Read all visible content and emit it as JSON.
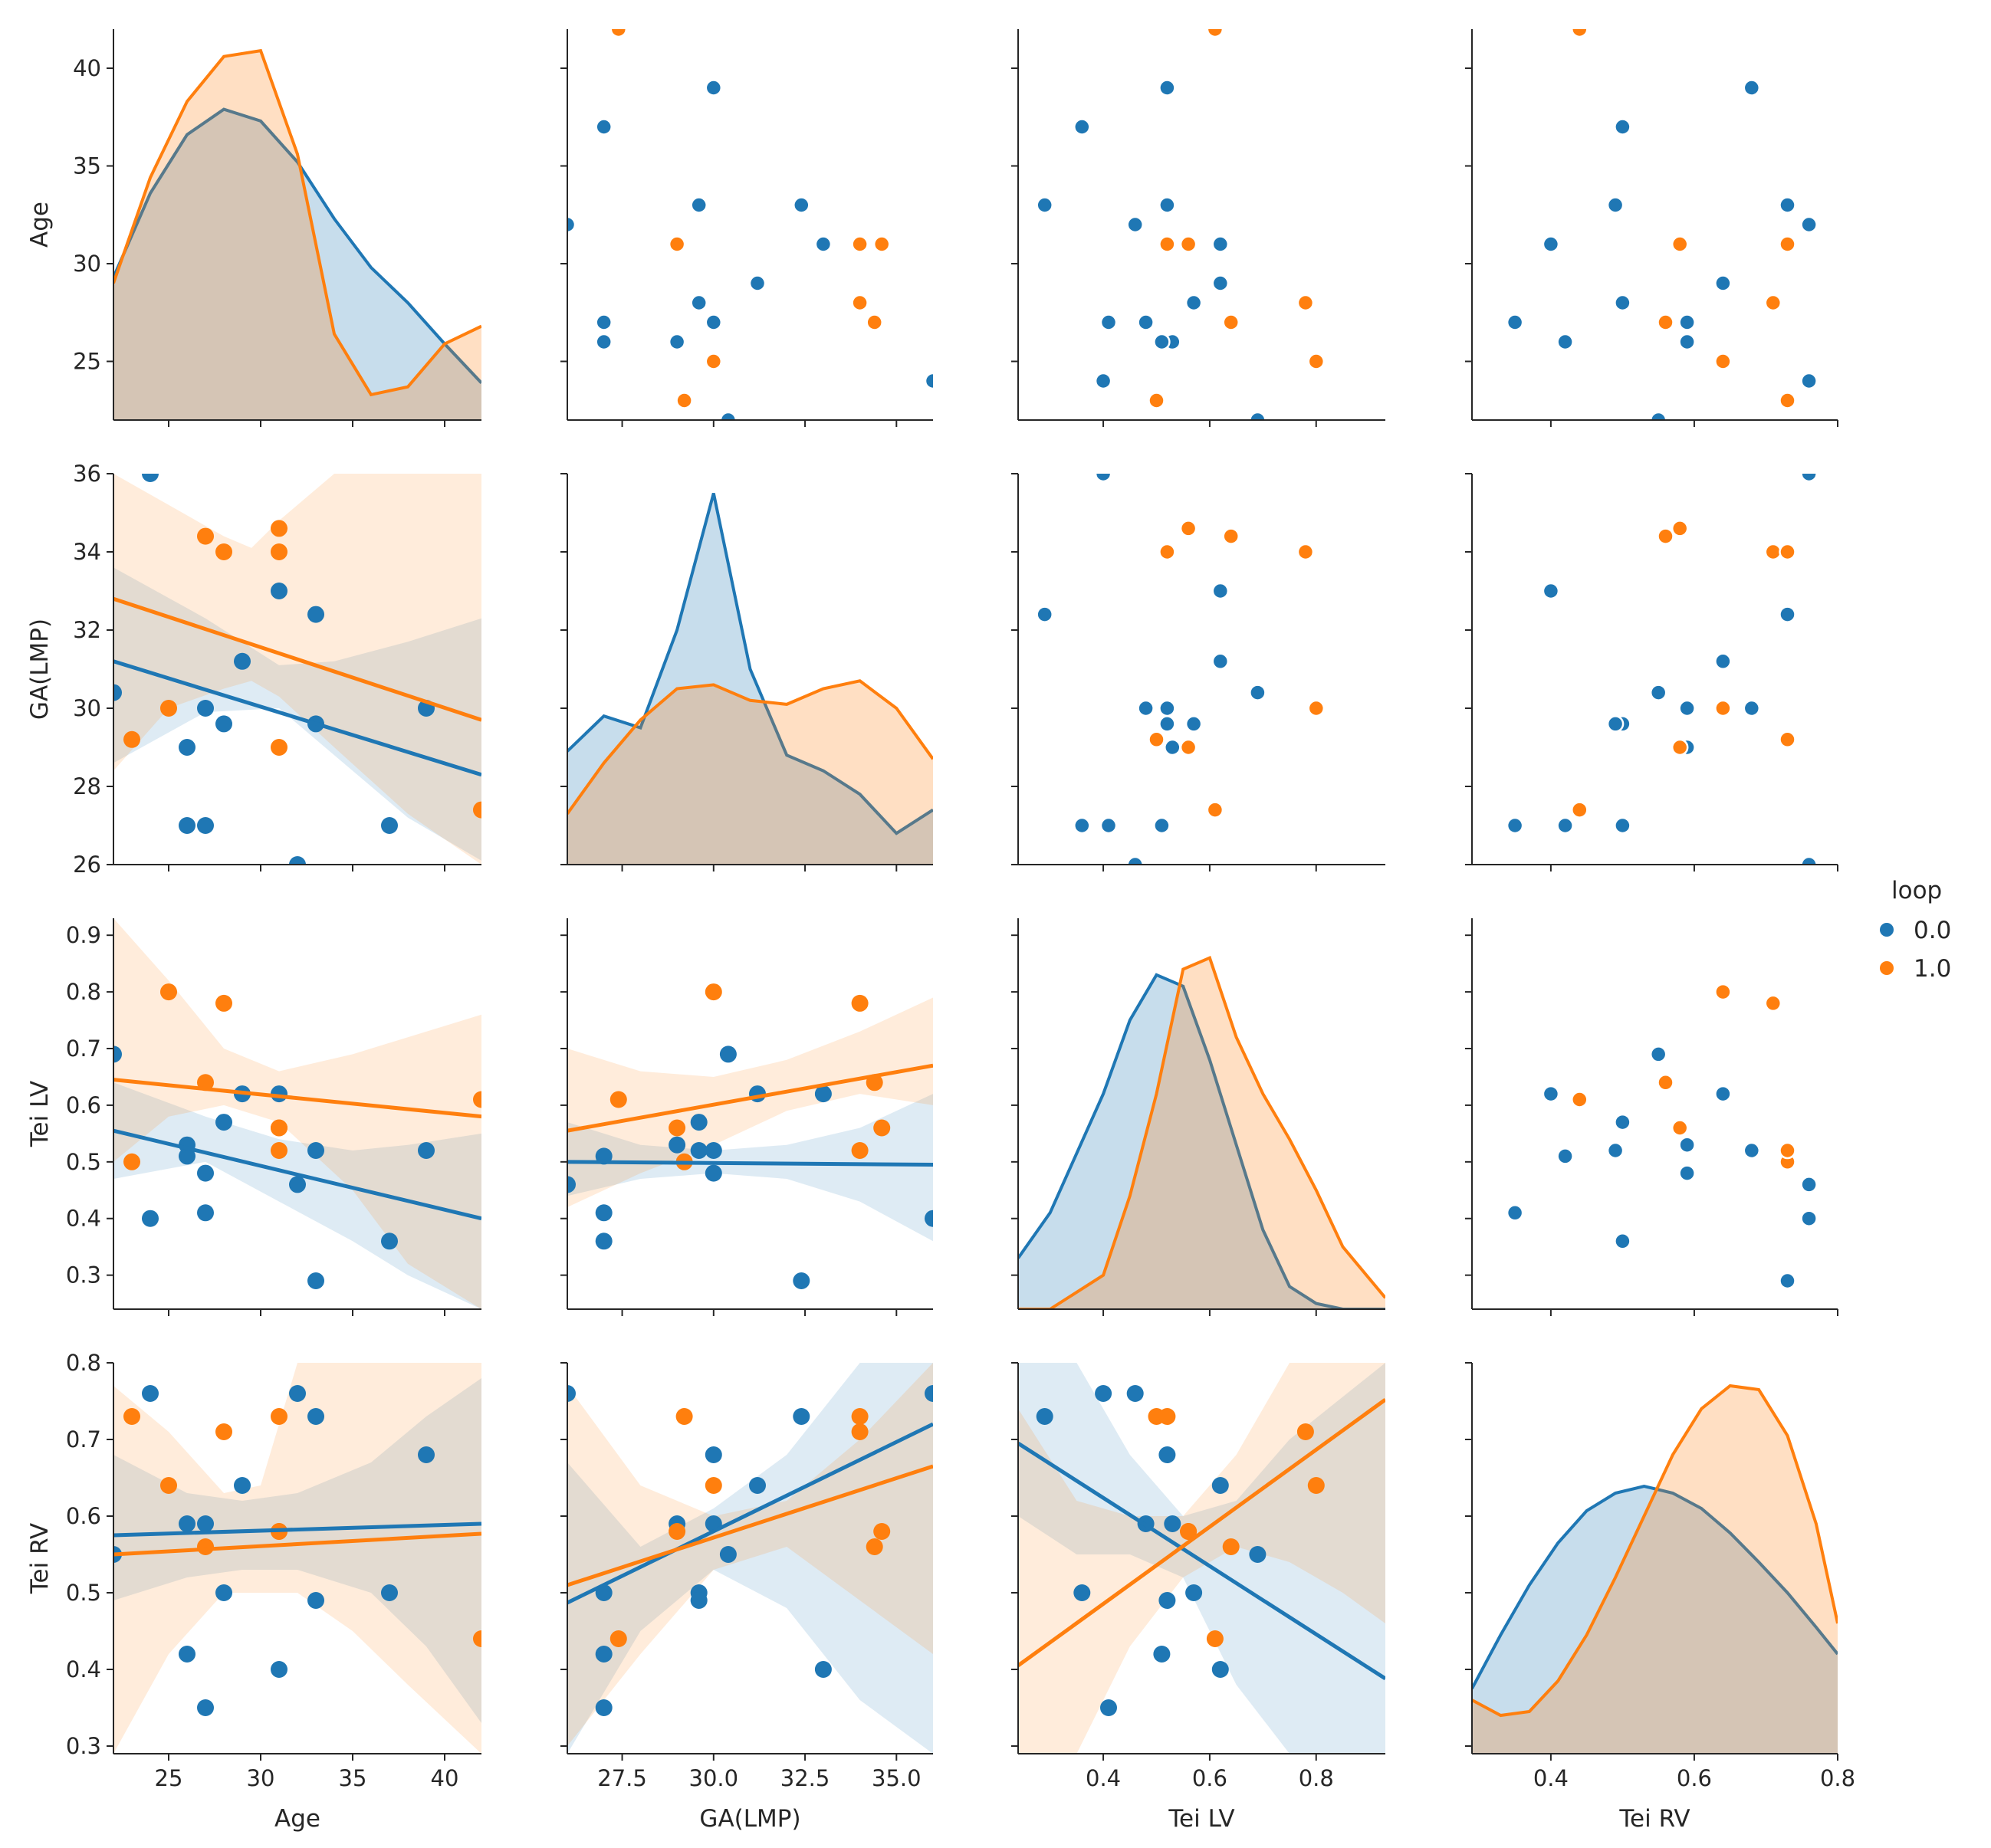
{
  "chart_data": {
    "type": "scatter",
    "kind": "pairplot",
    "variables": [
      "Age",
      "GA(LMP)",
      "Tei LV",
      "Tei RV"
    ],
    "axes": {
      "Age": {
        "lim": [
          22,
          42
        ],
        "ticks": [
          25,
          30,
          35,
          40
        ],
        "tick_labels": [
          "25",
          "30",
          "35",
          "40"
        ]
      },
      "GA(LMP)": {
        "lim": [
          26,
          36
        ],
        "ticks_x": [
          27.5,
          30.0,
          32.5,
          35.0
        ],
        "tick_labels_x": [
          "27.5",
          "30.0",
          "32.5",
          "35.0"
        ],
        "ticks_y": [
          26,
          28,
          30,
          32,
          34,
          36
        ],
        "tick_labels_y": [
          "26",
          "28",
          "30",
          "32",
          "34",
          "36"
        ]
      },
      "Tei LV": {
        "lim": [
          0.24,
          0.93
        ],
        "ticks_x": [
          0.4,
          0.6,
          0.8
        ],
        "tick_labels_x": [
          "0.4",
          "0.6",
          "0.8"
        ],
        "ticks_y": [
          0.3,
          0.4,
          0.5,
          0.6,
          0.7,
          0.8,
          0.9
        ],
        "tick_labels_y": [
          "0.3",
          "0.4",
          "0.5",
          "0.6",
          "0.7",
          "0.8",
          "0.9"
        ]
      },
      "Tei RV": {
        "lim": [
          0.29,
          0.8
        ],
        "ticks_x": [
          0.4,
          0.6,
          0.8
        ],
        "tick_labels_x": [
          "0.4",
          "0.6",
          "0.8"
        ],
        "ticks_y": [
          0.3,
          0.4,
          0.5,
          0.6,
          0.7,
          0.8
        ],
        "tick_labels_y": [
          "0.3",
          "0.4",
          "0.5",
          "0.6",
          "0.7",
          "0.8"
        ]
      }
    },
    "legend": {
      "title": "loop",
      "position": "right",
      "entries": [
        {
          "label": "0.0",
          "color": "#1f77b4"
        },
        {
          "label": "1.0",
          "color": "#ff7f0e"
        }
      ]
    },
    "series": [
      {
        "name": "0.0",
        "color": "#1f77b4",
        "points": [
          [
            22,
            30.4,
            0.69,
            0.55
          ],
          [
            24,
            36,
            0.4,
            0.76
          ],
          [
            26,
            29,
            0.53,
            0.59
          ],
          [
            26,
            27,
            0.51,
            0.42
          ],
          [
            27,
            30,
            0.48,
            0.59
          ],
          [
            27,
            27,
            0.41,
            0.35
          ],
          [
            28,
            29.6,
            0.57,
            0.5
          ],
          [
            29,
            31.2,
            0.62,
            0.64
          ],
          [
            31,
            33,
            0.62,
            0.4
          ],
          [
            32,
            26,
            0.46,
            0.76
          ],
          [
            33,
            29.6,
            0.52,
            0.49
          ],
          [
            33,
            32.4,
            0.29,
            0.73
          ],
          [
            37,
            27,
            0.36,
            0.5
          ],
          [
            39,
            30,
            0.52,
            0.68
          ]
        ]
      },
      {
        "name": "1.0",
        "color": "#ff7f0e",
        "points": [
          [
            23,
            29.2,
            0.5,
            0.73
          ],
          [
            25,
            30,
            0.8,
            0.64
          ],
          [
            27,
            34.4,
            0.64,
            0.56
          ],
          [
            28,
            34,
            0.78,
            0.71
          ],
          [
            31,
            34.6,
            0.56,
            0.58
          ],
          [
            31,
            34,
            0.52,
            0.73
          ],
          [
            31,
            29,
            0.56,
            0.58
          ],
          [
            42,
            27.4,
            0.61,
            0.44
          ]
        ]
      }
    ],
    "kde": {
      "Age": {
        "x": [
          22,
          24,
          26,
          28,
          30,
          32,
          34,
          36,
          38,
          40,
          42
        ],
        "0.0": [
          29.3,
          33.6,
          36.6,
          37.9,
          37.3,
          35.2,
          32.3,
          29.8,
          28.0,
          25.9,
          23.9
        ],
        "1.0": [
          29.0,
          34.4,
          38.3,
          40.6,
          40.9,
          35.6,
          26.4,
          23.3,
          23.7,
          25.9,
          26.8
        ]
      },
      "GA(LMP)": {
        "x": [
          26,
          27,
          28,
          29,
          30,
          31,
          32,
          33,
          34,
          35,
          36
        ],
        "0.0": [
          28.9,
          29.8,
          29.5,
          32.0,
          35.5,
          31.0,
          28.8,
          28.4,
          27.8,
          26.8,
          27.4
        ],
        "1.0": [
          27.3,
          28.6,
          29.7,
          30.5,
          30.6,
          30.2,
          30.1,
          30.5,
          30.7,
          30.0,
          28.7
        ]
      },
      "Tei LV": {
        "x": [
          0.24,
          0.3,
          0.4,
          0.45,
          0.5,
          0.55,
          0.6,
          0.65,
          0.7,
          0.75,
          0.8,
          0.85,
          0.93
        ],
        "0.0": [
          0.33,
          0.41,
          0.62,
          0.75,
          0.83,
          0.81,
          0.68,
          0.53,
          0.38,
          0.28,
          0.25,
          0.24,
          0.24
        ],
        "1.0": [
          0.24,
          0.24,
          0.3,
          0.44,
          0.62,
          0.84,
          0.86,
          0.72,
          0.62,
          0.54,
          0.45,
          0.35,
          0.26
        ]
      },
      "Tei RV": {
        "x": [
          0.29,
          0.33,
          0.37,
          0.41,
          0.45,
          0.49,
          0.53,
          0.57,
          0.61,
          0.65,
          0.69,
          0.73,
          0.77,
          0.8
        ],
        "0.0": [
          0.375,
          0.445,
          0.51,
          0.565,
          0.607,
          0.63,
          0.639,
          0.63,
          0.61,
          0.578,
          0.54,
          0.5,
          0.455,
          0.42
        ],
        "1.0": [
          0.36,
          0.34,
          0.345,
          0.385,
          0.445,
          0.52,
          0.6,
          0.68,
          0.74,
          0.77,
          0.765,
          0.705,
          0.59,
          0.46
        ]
      }
    },
    "regression": {
      "GA(LMP)~Age": {
        "0.0": [
          [
            22,
            31.2
          ],
          [
            42,
            28.3
          ]
        ],
        "1.0": [
          [
            22,
            32.8
          ],
          [
            42,
            29.7
          ]
        ]
      },
      "Tei LV~Age": {
        "0.0": [
          [
            22,
            0.555
          ],
          [
            42,
            0.4
          ]
        ],
        "1.0": [
          [
            22,
            0.645
          ],
          [
            42,
            0.58
          ]
        ]
      },
      "Tei LV~GA(LMP)": {
        "0.0": [
          [
            26,
            0.5
          ],
          [
            36,
            0.495
          ]
        ],
        "1.0": [
          [
            26,
            0.555
          ],
          [
            36,
            0.67
          ]
        ]
      },
      "Tei RV~Age": {
        "0.0": [
          [
            22,
            0.575
          ],
          [
            42,
            0.59
          ]
        ],
        "1.0": [
          [
            22,
            0.55
          ],
          [
            42,
            0.577
          ]
        ]
      },
      "Tei RV~GA(LMP)": {
        "0.0": [
          [
            26,
            0.487
          ],
          [
            36,
            0.72
          ]
        ],
        "1.0": [
          [
            26,
            0.51
          ],
          [
            36,
            0.665
          ]
        ]
      },
      "Tei RV~Tei LV": {
        "0.0": [
          [
            0.24,
            0.695
          ],
          [
            0.93,
            0.388
          ]
        ],
        "1.0": [
          [
            0.24,
            0.405
          ],
          [
            0.93,
            0.752
          ]
        ]
      }
    },
    "confidence_bands": {
      "GA(LMP)~Age": {
        "0.0": {
          "x": [
            22,
            27,
            31,
            34,
            38,
            42
          ],
          "lo": [
            28.6,
            29.9,
            30.0,
            28.8,
            27.2,
            26.1
          ],
          "hi": [
            33.6,
            32.3,
            31.1,
            31.2,
            31.7,
            32.3
          ]
        },
        "1.0": {
          "x": [
            22,
            25,
            28,
            29.5,
            31,
            34,
            38,
            42
          ],
          "lo": [
            28.4,
            30.0,
            30.5,
            30.7,
            30.3,
            29.0,
            27.3,
            26.0
          ],
          "hi": [
            36,
            35.2,
            34.4,
            34.1,
            34.8,
            36,
            36,
            36
          ]
        }
      },
      "Tei LV~Age": {
        "0.0": {
          "x": [
            22,
            27,
            31,
            35,
            38,
            42
          ],
          "lo": [
            0.47,
            0.5,
            0.43,
            0.36,
            0.3,
            0.24
          ],
          "hi": [
            0.64,
            0.58,
            0.54,
            0.52,
            0.53,
            0.55
          ]
        },
        "1.0": {
          "x": [
            22,
            25,
            28,
            31,
            35,
            38,
            42
          ],
          "lo": [
            0.5,
            0.58,
            0.6,
            0.57,
            0.45,
            0.32,
            0.24
          ],
          "hi": [
            0.93,
            0.82,
            0.7,
            0.66,
            0.69,
            0.72,
            0.76
          ]
        }
      },
      "Tei LV~GA(LMP)": {
        "0.0": {
          "x": [
            26,
            28,
            30,
            32,
            34,
            36
          ],
          "lo": [
            0.44,
            0.47,
            0.48,
            0.47,
            0.43,
            0.36
          ],
          "hi": [
            0.57,
            0.53,
            0.52,
            0.53,
            0.56,
            0.62
          ]
        },
        "1.0": {
          "x": [
            26,
            28,
            30,
            32,
            34,
            36
          ],
          "lo": [
            0.42,
            0.48,
            0.53,
            0.59,
            0.62,
            0.6
          ],
          "hi": [
            0.7,
            0.66,
            0.65,
            0.68,
            0.73,
            0.79
          ]
        }
      },
      "Tei RV~Age": {
        "0.0": {
          "x": [
            22,
            26,
            29,
            32,
            36,
            39,
            42
          ],
          "lo": [
            0.49,
            0.52,
            0.53,
            0.53,
            0.5,
            0.43,
            0.33
          ],
          "hi": [
            0.68,
            0.63,
            0.62,
            0.63,
            0.67,
            0.73,
            0.78
          ]
        },
        "1.0": {
          "x": [
            22,
            25,
            28,
            30,
            32,
            35,
            38,
            42
          ],
          "lo": [
            0.29,
            0.42,
            0.5,
            0.5,
            0.5,
            0.45,
            0.38,
            0.29
          ],
          "hi": [
            0.77,
            0.71,
            0.63,
            0.64,
            0.8,
            0.8,
            0.8,
            0.8
          ]
        }
      },
      "Tei RV~GA(LMP)": {
        "0.0": {
          "x": [
            26,
            28,
            30,
            32,
            34,
            36
          ],
          "lo": [
            0.29,
            0.45,
            0.53,
            0.48,
            0.36,
            0.29
          ],
          "hi": [
            0.67,
            0.56,
            0.61,
            0.68,
            0.8,
            0.8
          ]
        },
        "1.0": {
          "x": [
            26,
            28,
            30,
            32,
            34,
            36
          ],
          "lo": [
            0.3,
            0.42,
            0.53,
            0.56,
            0.49,
            0.42
          ],
          "hi": [
            0.77,
            0.64,
            0.6,
            0.62,
            0.7,
            0.8
          ]
        }
      },
      "Tei RV~Tei LV": {
        "0.0": {
          "x": [
            0.24,
            0.35,
            0.45,
            0.55,
            0.65,
            0.75,
            0.93
          ],
          "lo": [
            0.6,
            0.55,
            0.55,
            0.52,
            0.38,
            0.29,
            0.29
          ],
          "hi": [
            0.8,
            0.8,
            0.68,
            0.6,
            0.62,
            0.7,
            0.8
          ]
        },
        "1.0": {
          "x": [
            0.24,
            0.35,
            0.45,
            0.55,
            0.65,
            0.75,
            0.85,
            0.93
          ],
          "lo": [
            0.29,
            0.29,
            0.43,
            0.52,
            0.56,
            0.54,
            0.5,
            0.46
          ],
          "hi": [
            0.74,
            0.62,
            0.6,
            0.6,
            0.68,
            0.8,
            0.8,
            0.8
          ]
        }
      }
    }
  }
}
